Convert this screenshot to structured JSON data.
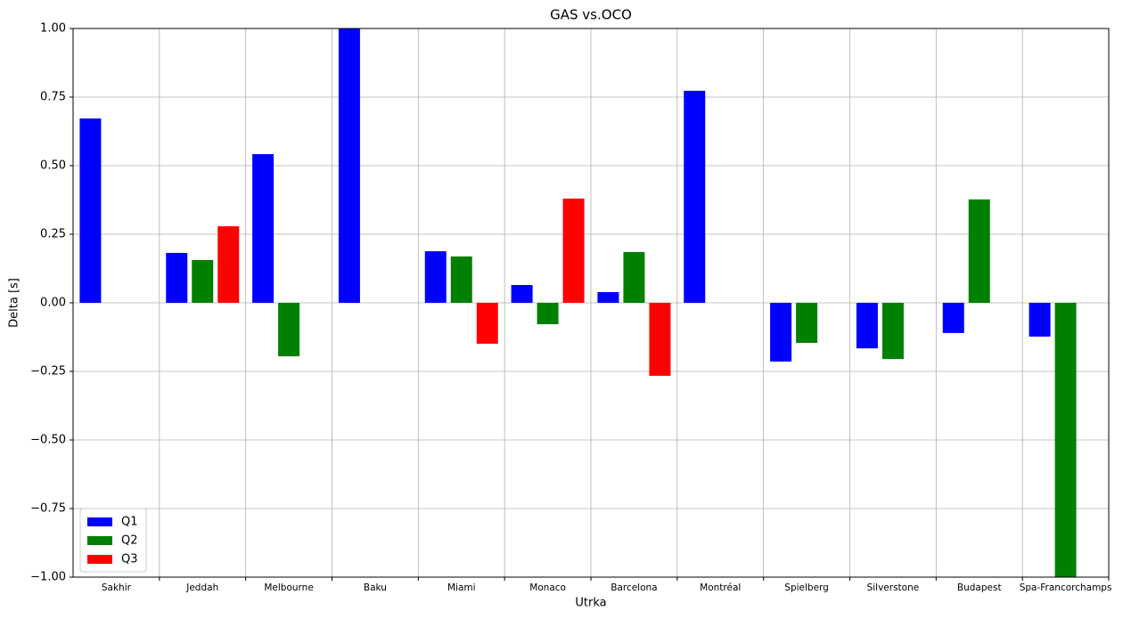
{
  "chart_data": {
    "type": "bar",
    "title": "GAS vs.OCO",
    "x_label": "Utrka",
    "y_label": "Delta [s]",
    "categories": [
      "Sakhir",
      "Jeddah",
      "Melbourne",
      "Baku",
      "Miami",
      "Monaco",
      "Barcelona",
      "Montréal",
      "Spielberg",
      "Silverstone",
      "Budapest",
      "Spa-Francorchamps"
    ],
    "series": [
      {
        "name": "Q1",
        "color": "#0000ff",
        "values": [
          0.672,
          0.182,
          0.542,
          1.0,
          0.188,
          0.065,
          0.039,
          0.773,
          -0.214,
          -0.166,
          -0.11,
          -0.123
        ]
      },
      {
        "name": "Q2",
        "color": "#008000",
        "values": [
          null,
          0.156,
          -0.195,
          null,
          0.169,
          -0.078,
          0.185,
          null,
          -0.146,
          -0.205,
          0.377,
          -1.0
        ]
      },
      {
        "name": "Q3",
        "color": "#ff0000",
        "values": [
          null,
          0.279,
          null,
          null,
          -0.149,
          0.38,
          -0.266,
          null,
          null,
          null,
          null,
          null
        ]
      }
    ],
    "ylim": [
      -1.0,
      1.0
    ],
    "yticks": [
      {
        "value": -1.0,
        "label": "−1.00"
      },
      {
        "value": -0.75,
        "label": "−0.75"
      },
      {
        "value": -0.5,
        "label": "−0.50"
      },
      {
        "value": -0.25,
        "label": "−0.25"
      },
      {
        "value": 0.0,
        "label": "0.00"
      },
      {
        "value": 0.25,
        "label": "0.25"
      },
      {
        "value": 0.5,
        "label": "0.50"
      },
      {
        "value": 0.75,
        "label": "0.75"
      },
      {
        "value": 1.0,
        "label": "1.00"
      }
    ],
    "grid": true,
    "legend": "lower left"
  }
}
